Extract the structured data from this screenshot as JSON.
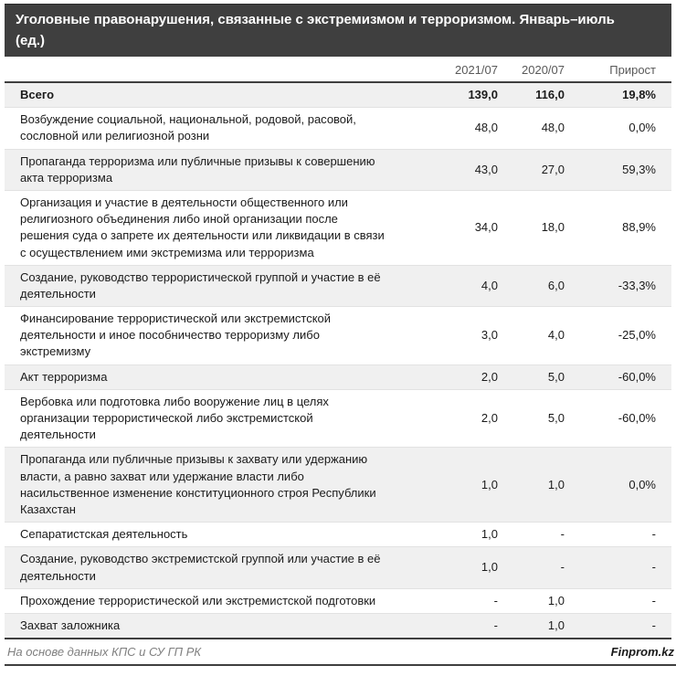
{
  "chart_data": {
    "type": "table",
    "title": "Уголовные правонарушения, связанные с экстремизмом и терроризмом. Январь–июль (ед.)",
    "columns": [
      "2021/07",
      "2020/07",
      "Прирост"
    ],
    "rows": [
      {
        "label": "Всего",
        "values": [
          "139,0",
          "116,0",
          "19,8%"
        ],
        "total": true
      },
      {
        "label": "Возбуждение социальной, национальной, родовой, расовой, сословной или религиозной розни",
        "values": [
          "48,0",
          "48,0",
          "0,0%"
        ]
      },
      {
        "label": "Пропаганда терроризма или публичные призывы к совершению акта терроризма",
        "values": [
          "43,0",
          "27,0",
          "59,3%"
        ]
      },
      {
        "label": "Организация и участие в деятельности общественного или религиозного объединения либо иной организации после решения суда о запрете их деятельности или ликвидации в связи с осуществлением ими экстремизма или терроризма",
        "values": [
          "34,0",
          "18,0",
          "88,9%"
        ]
      },
      {
        "label": "Создание, руководство террористической группой и участие в её деятельности",
        "values": [
          "4,0",
          "6,0",
          "-33,3%"
        ]
      },
      {
        "label": "Финансирование террористической или экстремистской деятельности и иное пособничество терроризму либо экстремизму",
        "values": [
          "3,0",
          "4,0",
          "-25,0%"
        ]
      },
      {
        "label": "Акт терроризма",
        "values": [
          "2,0",
          "5,0",
          "-60,0%"
        ]
      },
      {
        "label": "Вербовка или подготовка либо вооружение лиц в целях организации террористической либо экстремистской деятельности",
        "values": [
          "2,0",
          "5,0",
          "-60,0%"
        ]
      },
      {
        "label": "Пропаганда или публичные призывы к захвату или удержанию власти, а равно захват или удержание власти либо насильственное изменение конституционного строя Республики Казахстан",
        "values": [
          "1,0",
          "1,0",
          "0,0%"
        ]
      },
      {
        "label": "Сепаратистская деятельность",
        "values": [
          "1,0",
          "-",
          "-"
        ]
      },
      {
        "label": "Создание, руководство экстремистской группой или участие в её деятельности",
        "values": [
          "1,0",
          "-",
          "-"
        ]
      },
      {
        "label": "Прохождение террористической или экстремистской подготовки",
        "values": [
          "-",
          "1,0",
          "-"
        ]
      },
      {
        "label": "Захват заложника",
        "values": [
          "-",
          "1,0",
          "-"
        ]
      }
    ],
    "source": "На основе данных КПС и СУ ГП РК",
    "brand": "Finprom.kz",
    "layout": {
      "legend": "none",
      "grid": "row-separators",
      "alt_row_shading": "starts-at-total-row"
    }
  },
  "colors": {
    "title_bg": "#3f3f3f",
    "title_text": "#ffffff",
    "column_header_text": "#595959",
    "body_text": "#1a1a1a",
    "alt_row_bg": "#f0f0f0",
    "divider_dark": "#3f3f3f",
    "divider_light": "#e2e2e2",
    "source_text": "#7f7f7f"
  }
}
